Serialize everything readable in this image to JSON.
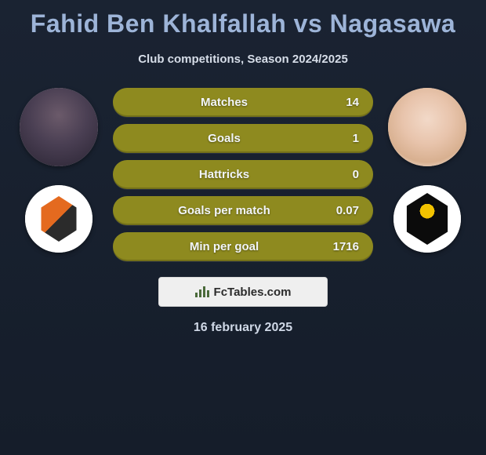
{
  "title": "Fahid Ben Khalfallah vs Nagasawa",
  "subtitle": "Club competitions, Season 2024/2025",
  "date": "16 february 2025",
  "branding": "FcTables.com",
  "pill_color": "#8e8a1f",
  "pill_label_color": "#f2f5f9",
  "title_color": "#9db4d8",
  "subtitle_color": "#d6dde8",
  "date_color": "#cfd8e6",
  "background_gradient": [
    "#1a2332",
    "#151d2a"
  ],
  "stats": [
    {
      "label": "Matches",
      "value": "14"
    },
    {
      "label": "Goals",
      "value": "1"
    },
    {
      "label": "Hattricks",
      "value": "0"
    },
    {
      "label": "Goals per match",
      "value": "0.07"
    },
    {
      "label": "Min per goal",
      "value": "1716"
    }
  ],
  "left": {
    "player_name": "Fahid Ben Khalfallah",
    "team_hint": "Brisbane Roar"
  },
  "right": {
    "player_name": "Nagasawa",
    "team_hint": "Wellington Phoenix"
  }
}
